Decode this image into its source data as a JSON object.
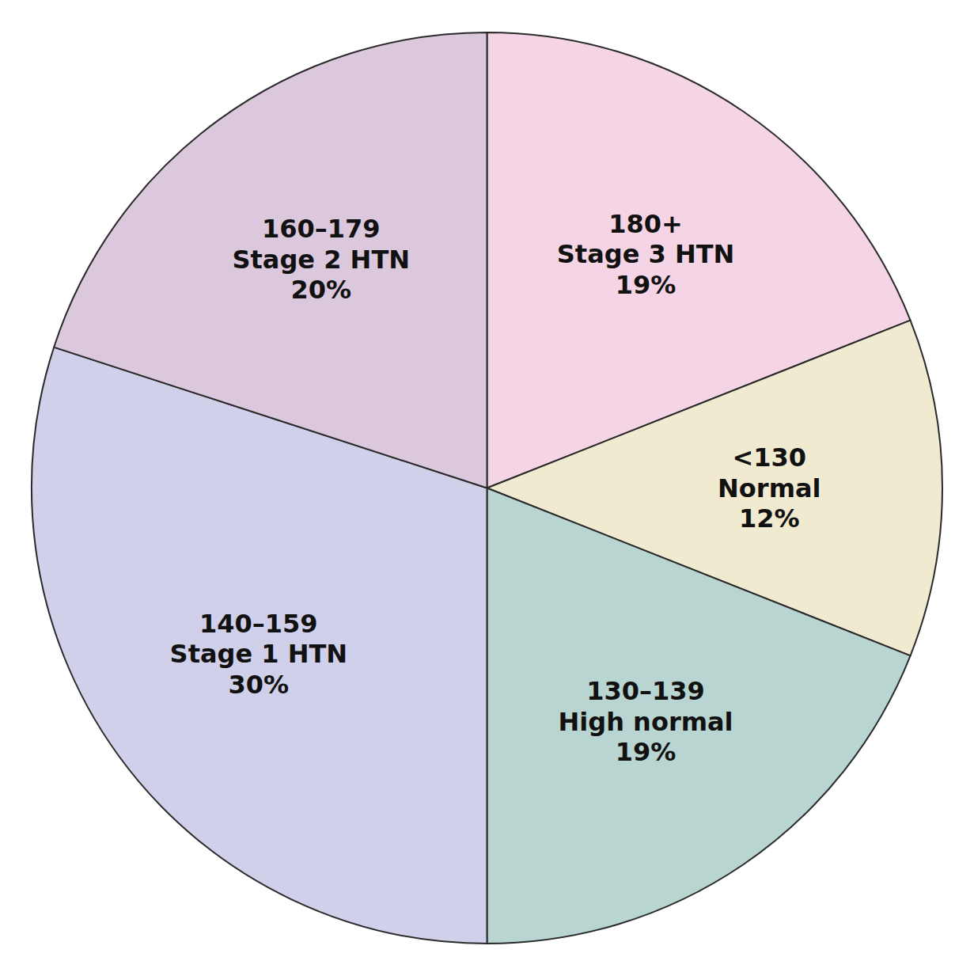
{
  "chart_data": {
    "type": "pie",
    "categories": [
      "180+\nStage 3 HTN",
      "<130\nNormal",
      "130–139\nHigh normal",
      "140–159\nStage 1 HTN",
      "160–179\nStage 2 HTN"
    ],
    "values": [
      19,
      12,
      19,
      30,
      20
    ],
    "value_labels": [
      "19%",
      "12%",
      "19%",
      "30%",
      "20%"
    ],
    "colors": [
      "#f5d5e5",
      "#f0ead0",
      "#b8d5d2",
      "#d0d0ea",
      "#dcc8dc"
    ],
    "data_labels": true
  }
}
